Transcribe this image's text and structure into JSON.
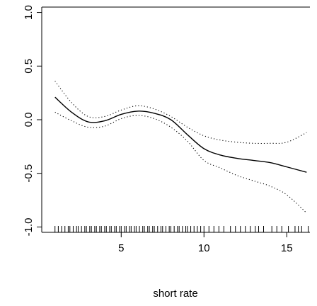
{
  "chart_data": {
    "type": "line",
    "title": "",
    "xlabel": "short rate",
    "ylabel": "",
    "xlim": [
      0.2,
      16.4
    ],
    "ylim": [
      -1.05,
      1.05
    ],
    "x_ticks": [
      5,
      10,
      15
    ],
    "y_ticks": [
      -1.0,
      -0.5,
      0.0,
      0.5,
      1.0
    ],
    "x_tick_labels": [
      "5",
      "10",
      "15"
    ],
    "y_tick_labels": [
      "-1.0",
      "-0.5",
      "0.0",
      "0.5",
      "1.0"
    ],
    "grid": false,
    "legend": "none",
    "series": [
      {
        "style": "solid",
        "x": [
          1.0,
          2.0,
          3.0,
          4.0,
          5.0,
          6.0,
          7.0,
          8.0,
          9.0,
          10.0,
          11.0,
          12.0,
          13.0,
          14.0,
          15.0,
          16.2
        ],
        "y": [
          0.21,
          0.07,
          -0.02,
          -0.01,
          0.05,
          0.08,
          0.06,
          0.0,
          -0.14,
          -0.27,
          -0.33,
          -0.36,
          -0.38,
          -0.4,
          -0.44,
          -0.49
        ]
      },
      {
        "style": "dotted",
        "x": [
          1.0,
          2.0,
          3.0,
          4.0,
          5.0,
          6.0,
          7.0,
          8.0,
          9.0,
          10.0,
          11.0,
          12.0,
          13.0,
          14.0,
          15.0,
          16.2
        ],
        "y": [
          0.36,
          0.16,
          0.03,
          0.03,
          0.09,
          0.13,
          0.1,
          0.03,
          -0.07,
          -0.15,
          -0.19,
          -0.21,
          -0.22,
          -0.22,
          -0.21,
          -0.12
        ]
      },
      {
        "style": "dotted",
        "x": [
          1.0,
          2.0,
          3.0,
          4.0,
          5.0,
          6.0,
          7.0,
          8.0,
          9.0,
          10.0,
          11.0,
          12.0,
          13.0,
          14.0,
          15.0,
          16.2
        ],
        "y": [
          0.07,
          -0.01,
          -0.07,
          -0.06,
          0.01,
          0.04,
          0.01,
          -0.07,
          -0.2,
          -0.38,
          -0.45,
          -0.52,
          -0.57,
          -0.62,
          -0.7,
          -0.87
        ]
      }
    ],
    "rug": [
      1.0,
      1.2,
      1.4,
      1.6,
      1.8,
      1.9,
      2.1,
      2.3,
      2.4,
      2.6,
      2.8,
      2.9,
      3.1,
      3.2,
      3.4,
      3.5,
      3.7,
      3.8,
      4.0,
      4.1,
      4.3,
      4.4,
      4.6,
      4.7,
      4.9,
      5.0,
      5.2,
      5.3,
      5.5,
      5.6,
      5.8,
      5.9,
      6.1,
      6.3,
      6.4,
      6.6,
      6.7,
      6.9,
      7.0,
      7.2,
      7.4,
      7.5,
      7.7,
      7.9,
      8.0,
      8.2,
      8.4,
      8.5,
      8.7,
      8.9,
      9.0,
      9.2,
      9.4,
      9.6,
      9.8,
      10.0,
      10.3,
      10.6,
      10.9,
      11.2,
      11.6,
      11.9,
      12.2,
      12.5,
      12.8,
      13.1,
      13.3,
      13.6,
      14.1,
      14.4,
      14.7,
      15.1,
      15.5,
      15.7,
      15.9,
      16.3
    ]
  }
}
